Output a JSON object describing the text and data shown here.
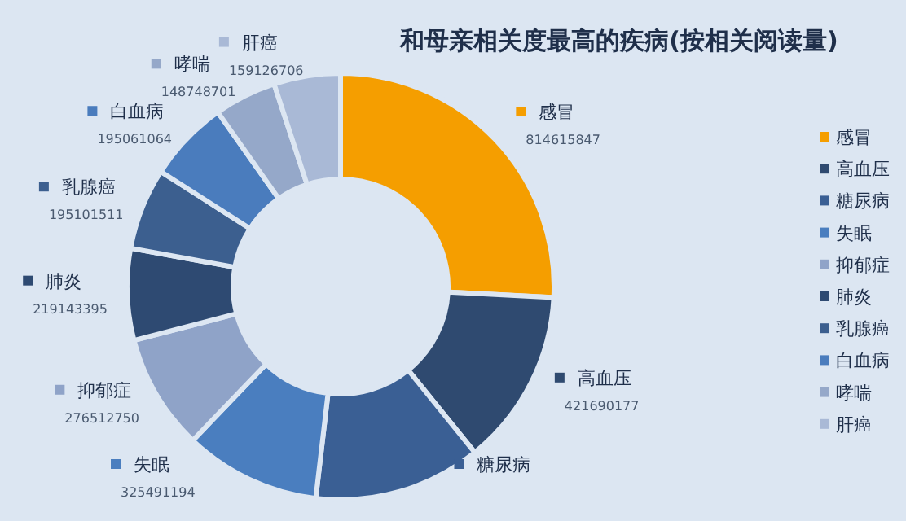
{
  "chart_data": {
    "type": "donut",
    "title": "和母亲相关度最高的疾病(按相关阅读量)",
    "categories": [
      "感冒",
      "高血压",
      "糖尿病",
      "失眠",
      "抑郁症",
      "肺炎",
      "乳腺癌",
      "白血病",
      "哮喘",
      "肝癌"
    ],
    "values": [
      814615847,
      421690177,
      400000000,
      325491194,
      276512750,
      219143395,
      195101511,
      195061064,
      148748701,
      159126706
    ],
    "value_labels": [
      "814615847",
      "421690177",
      null,
      "325491194",
      "276512750",
      "219143395",
      "195101511",
      "195061064",
      "148748701",
      "159126706"
    ],
    "colors": [
      "#f59e00",
      "#2f4a70",
      "#3a5f94",
      "#4a7ebf",
      "#8fa3c8",
      "#2e4a72",
      "#3c5f8f",
      "#4a7cbd",
      "#95a8c9",
      "#a9b9d6"
    ],
    "legend": "right"
  }
}
